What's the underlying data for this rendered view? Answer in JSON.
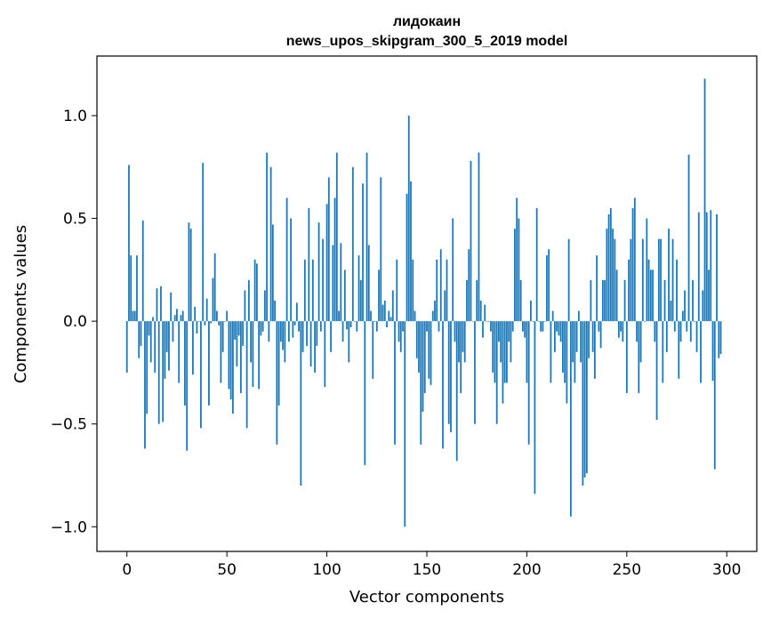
{
  "chart_data": {
    "type": "bar",
    "title": "лидокаин",
    "subtitle": "news_upos_skipgram_300_5_2019 model",
    "xlabel": "Vector components",
    "ylabel": "Components values",
    "xlim": [
      -15,
      315
    ],
    "ylim": [
      -1.12,
      1.29
    ],
    "xticks": [
      0,
      50,
      100,
      150,
      200,
      250,
      300
    ],
    "xtick_labels": [
      "0",
      "50",
      "100",
      "150",
      "200",
      "250",
      "300"
    ],
    "yticks": [
      -1.0,
      -0.5,
      0.0,
      0.5,
      1.0
    ],
    "ytick_labels": [
      "−1.0",
      "−0.5",
      "0.0",
      "0.5",
      "1.0"
    ],
    "grid": false,
    "bar_color": "#1f77b4",
    "values": [
      -0.25,
      0.76,
      0.32,
      0.05,
      0.05,
      0.32,
      -0.18,
      -0.12,
      0.49,
      -0.62,
      -0.45,
      -0.07,
      -0.2,
      0.02,
      -0.25,
      0.16,
      -0.5,
      0.17,
      -0.49,
      -0.28,
      -0.15,
      -0.24,
      0.14,
      -0.1,
      0.03,
      0.06,
      -0.3,
      0.03,
      0.05,
      -0.41,
      -0.63,
      0.48,
      0.45,
      -0.26,
      0.07,
      -0.06,
      0.0,
      -0.52,
      0.77,
      -0.02,
      0.11,
      -0.41,
      -0.01,
      0.21,
      0.33,
      0.05,
      -0.02,
      -0.3,
      -0.15,
      0.0,
      0.05,
      -0.33,
      -0.38,
      -0.45,
      -0.09,
      -0.22,
      -0.07,
      -0.35,
      -0.12,
      0.15,
      -0.52,
      0.2,
      -0.2,
      -0.32,
      0.3,
      0.28,
      -0.33,
      -0.07,
      -0.05,
      0.15,
      0.82,
      -0.1,
      0.75,
      0.47,
      0.1,
      -0.6,
      -0.41,
      -0.1,
      -0.14,
      -0.2,
      0.6,
      -0.1,
      0.5,
      -0.08,
      -0.02,
      0.09,
      -0.05,
      -0.8,
      -0.15,
      0.3,
      -0.12,
      0.55,
      -0.22,
      0.3,
      -0.25,
      -0.12,
      0.48,
      -0.05,
      0.4,
      -0.32,
      0.57,
      0.7,
      -0.15,
      0.37,
      0.6,
      0.82,
      0.05,
      0.38,
      -0.1,
      0.25,
      -0.04,
      -0.2,
      -0.03,
      0.75,
      0.0,
      -0.05,
      0.32,
      0.2,
      0.67,
      -0.7,
      0.82,
      0.37,
      0.05,
      -0.28,
      0.0,
      -0.05,
      0.25,
      0.7,
      0.08,
      0.1,
      -0.03,
      0.05,
      0.02,
      0.15,
      -0.6,
      0.3,
      -0.1,
      -0.15,
      -0.05,
      -1.0,
      0.62,
      1.0,
      0.68,
      0.3,
      0.05,
      -0.18,
      -0.25,
      -0.6,
      -0.44,
      -0.35,
      -0.05,
      -0.28,
      -0.31,
      0.05,
      0.1,
      0.3,
      -0.05,
      0.35,
      -0.62,
      0.15,
      0.3,
      -0.5,
      -0.54,
      0.5,
      -0.1,
      -0.68,
      -0.2,
      -0.35,
      -0.15,
      -0.2,
      0.2,
      0.35,
      0.78,
      0.0,
      -0.5,
      0.2,
      0.82,
      0.1,
      -0.08,
      0.08,
      0.0,
      0.0,
      -0.05,
      -0.25,
      -0.3,
      -0.5,
      -0.1,
      -0.2,
      -0.4,
      -0.3,
      -0.3,
      -0.1,
      -0.2,
      -0.05,
      0.45,
      0.6,
      0.5,
      0.2,
      -0.05,
      -0.08,
      -0.3,
      -0.6,
      0.1,
      0.0,
      -0.84,
      0.55,
      0.0,
      -0.05,
      -0.05,
      0.0,
      0.32,
      0.35,
      -0.3,
      0.05,
      -0.15,
      -0.05,
      -0.07,
      -0.1,
      -0.25,
      -0.3,
      -0.4,
      0.4,
      -0.95,
      -0.2,
      -0.3,
      -0.15,
      0.05,
      -0.2,
      -0.8,
      -0.76,
      -0.74,
      -0.18,
      0.2,
      -0.15,
      -0.28,
      0.32,
      -0.05,
      -0.13,
      0.2,
      0.2,
      0.45,
      0.52,
      0.55,
      0.45,
      0.4,
      0.25,
      -0.08,
      -0.05,
      -0.1,
      0.2,
      -0.35,
      0.3,
      0.4,
      0.55,
      0.6,
      -0.1,
      -0.35,
      -0.2,
      0.4,
      0.0,
      0.5,
      0.3,
      0.25,
      0.25,
      -0.1,
      -0.48,
      0.4,
      0.4,
      -0.3,
      0.2,
      -0.15,
      0.45,
      0.1,
      0.4,
      -0.05,
      0.3,
      -0.28,
      -0.1,
      0.05,
      0.15,
      -0.05,
      0.81,
      -0.1,
      0.2,
      0.0,
      -0.15,
      0.53,
      -0.3,
      0.15,
      1.18,
      0.53,
      0.25,
      0.54,
      -0.29,
      -0.72,
      0.52,
      -0.18,
      -0.16
    ]
  }
}
